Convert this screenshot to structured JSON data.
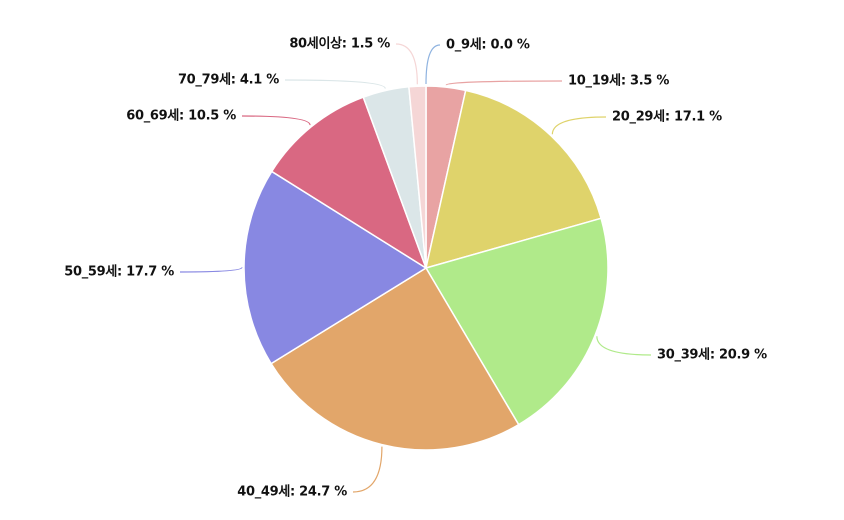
{
  "chart_data": {
    "type": "pie",
    "categories": [
      "0_9세",
      "10_19세",
      "20_29세",
      "30_39세",
      "40_49세",
      "50_59세",
      "60_69세",
      "70_79세",
      "80세이상"
    ],
    "values": [
      0.0,
      3.5,
      17.1,
      20.9,
      24.7,
      17.7,
      10.5,
      4.1,
      1.5
    ],
    "value_labels": [
      "0_9세: 0.0 %",
      "10_19세: 3.5 %",
      "20_29세: 17.1 %",
      "30_39세: 20.9 %",
      "40_49세: 24.7 %",
      "50_59세: 17.7 %",
      "60_69세: 10.5 %",
      "70_79세: 4.1 %",
      "80세이상: 1.5 %"
    ],
    "colors": [
      "#8fb3e0",
      "#e8a3a3",
      "#dfd36b",
      "#b0ea8a",
      "#e2a66a",
      "#8888e2",
      "#d96882",
      "#dbe6e8",
      "#f5d6d6"
    ]
  }
}
